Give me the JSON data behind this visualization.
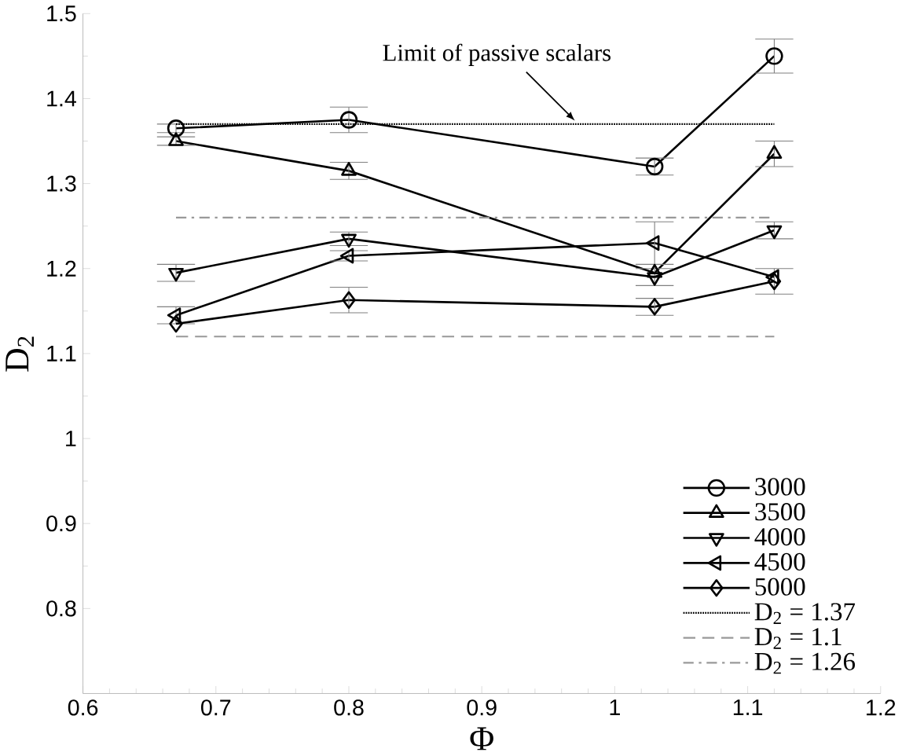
{
  "chart_data": {
    "type": "line",
    "xlabel": "Φ",
    "ylabel": "D$_{2}$",
    "x": [
      0.67,
      0.8,
      1.03,
      1.12
    ],
    "series": [
      {
        "name": "3000",
        "color": "#000000",
        "marker": "circle",
        "values": [
          1.365,
          1.375,
          1.32,
          1.45
        ],
        "errors": [
          0.005,
          0.015,
          0.01,
          0.02
        ]
      },
      {
        "name": "3500",
        "color": "#000000",
        "marker": "triangle",
        "values": [
          1.35,
          1.315,
          1.195,
          1.335
        ],
        "errors": [
          0.005,
          0.01,
          null,
          0.015
        ]
      },
      {
        "name": "4000",
        "color": "#000000",
        "marker": "triangle-down",
        "values": [
          1.195,
          1.235,
          1.19,
          1.245
        ],
        "errors": [
          0.01,
          0.008,
          0.01,
          0.01
        ]
      },
      {
        "name": "4500",
        "color": "#000000",
        "marker": "triangle-left",
        "values": [
          1.145,
          1.215,
          1.23,
          1.19
        ],
        "errors": [
          0.01,
          0.006,
          0.025,
          null
        ]
      },
      {
        "name": "5000",
        "color": "#000000",
        "marker": "diamond",
        "values": [
          1.135,
          1.163,
          1.155,
          1.185
        ],
        "errors": [
          null,
          0.015,
          0.01,
          0.015
        ]
      }
    ],
    "ref_lines": [
      {
        "axis": "y",
        "value": 1.37,
        "label": "D$_{2}$ = 1.37",
        "color": "#000000",
        "line_style": "dotted"
      },
      {
        "axis": "y",
        "value": 1.12,
        "label": "D$_{2}$ = 1.1",
        "color": "#999999",
        "line_style": "dashed"
      },
      {
        "axis": "y",
        "value": 1.26,
        "label": "D$_{2}$ = 1.26",
        "color": "#999999",
        "line_style": "dashdot"
      }
    ],
    "annotations": [
      {
        "text": "Limit of passive scalars",
        "x": 0.97,
        "y": 1.37
      }
    ],
    "xlim": [
      0.6,
      1.2
    ],
    "ylim": [
      0.7,
      1.5
    ],
    "xticks": [
      0.6,
      0.7,
      0.8,
      0.9,
      1,
      1.1,
      1.2
    ],
    "yticks": [
      0.8,
      0.9,
      1,
      1.1,
      1.2,
      1.3,
      1.4,
      1.5
    ],
    "legend": "bottom right",
    "grid": false
  }
}
